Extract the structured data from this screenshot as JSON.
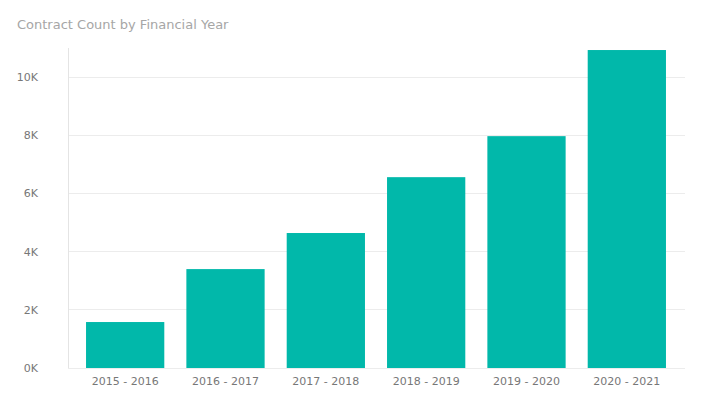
{
  "chart_data": {
    "type": "bar",
    "title": "Contract Count by Financial Year",
    "categories": [
      "2015 - 2016",
      "2016 - 2017",
      "2017 - 2018",
      "2018 - 2019",
      "2019 - 2020",
      "2020 - 2021"
    ],
    "values": [
      1580,
      3400,
      4640,
      6560,
      7970,
      10930
    ],
    "color": "#01b8aa",
    "ylim": [
      0,
      11000
    ],
    "yticks": [
      {
        "value": 0,
        "label": "0K"
      },
      {
        "value": 2000,
        "label": "2K"
      },
      {
        "value": 4000,
        "label": "4K"
      },
      {
        "value": 6000,
        "label": "6K"
      },
      {
        "value": 8000,
        "label": "8K"
      },
      {
        "value": 10000,
        "label": "10K"
      }
    ],
    "grid": true
  }
}
